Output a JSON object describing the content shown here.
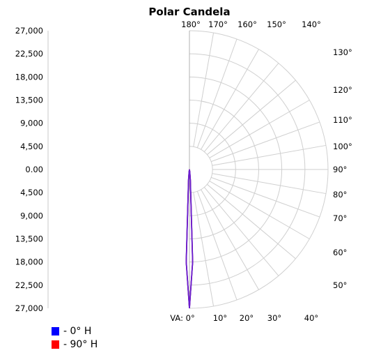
{
  "chart_data": {
    "type": "polar",
    "title": "Polar Candela",
    "y_tick_labels": [
      "27,000",
      "22,500",
      "18,000",
      "13,500",
      "9,000",
      "4,500",
      "0.00",
      "4,500",
      "9,000",
      "13,500",
      "18,000",
      "22,500",
      "27,000"
    ],
    "radial_max": 27000,
    "radial_step": 4500,
    "angle_ticks": [
      {
        "label": "VA: 0°",
        "angle": 0
      },
      {
        "label": "10°",
        "angle": 10
      },
      {
        "label": "20°",
        "angle": 20
      },
      {
        "label": "30°",
        "angle": 30
      },
      {
        "label": "40°",
        "angle": 40
      },
      {
        "label": "50°",
        "angle": 50
      },
      {
        "label": "60°",
        "angle": 60
      },
      {
        "label": "70°",
        "angle": 70
      },
      {
        "label": "80°",
        "angle": 80
      },
      {
        "label": "90°",
        "angle": 90
      },
      {
        "label": "100°",
        "angle": 100
      },
      {
        "label": "110°",
        "angle": 110
      },
      {
        "label": "120°",
        "angle": 120
      },
      {
        "label": "130°",
        "angle": 130
      },
      {
        "label": "140°",
        "angle": 140
      },
      {
        "label": "150°",
        "angle": 150
      },
      {
        "label": "160°",
        "angle": 160
      },
      {
        "label": "170°",
        "angle": 170
      },
      {
        "label": "180°",
        "angle": 180
      }
    ],
    "grid": true,
    "legend_position": "bottom-left",
    "series": [
      {
        "name": "- 0° H",
        "color": "#0000ff",
        "points": [
          [
            0,
            27000
          ],
          [
            2,
            18000
          ],
          [
            5,
            2000
          ],
          [
            8,
            500
          ],
          [
            90,
            0
          ]
        ]
      },
      {
        "name": "- 90° H",
        "color": "#ff0000",
        "points": [
          [
            0,
            27000
          ],
          [
            2,
            18000
          ],
          [
            5,
            2000
          ],
          [
            8,
            500
          ],
          [
            90,
            0
          ]
        ]
      }
    ],
    "overlap_color": "#6a1fd0"
  }
}
